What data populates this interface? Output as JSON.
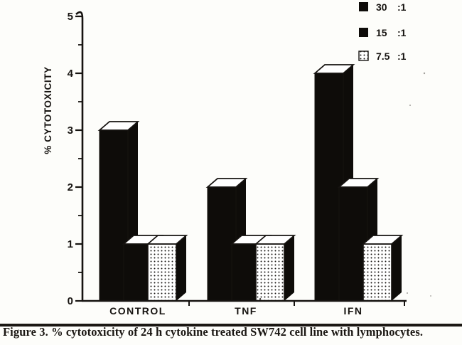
{
  "figure": {
    "caption": "Figure 3. % cytotoxicity of 24 h cytokine treated SW742 cell line with lymphocytes."
  },
  "chart_data": {
    "type": "bar",
    "variant": "3d-block-scan",
    "title": "",
    "xlabel": "",
    "ylabel": "% CYTOTOXICITY",
    "categories": [
      "CONTROL",
      "TNF",
      "IFN"
    ],
    "series": [
      {
        "name": "30 :1",
        "ratio": "30",
        "suffix": ":1",
        "fill": "solid",
        "values": [
          3,
          2,
          4
        ]
      },
      {
        "name": "15 :1",
        "ratio": "15",
        "suffix": ":1",
        "fill": "solid",
        "values": [
          1,
          1,
          2
        ]
      },
      {
        "name": "7.5 :1",
        "ratio": "7.5",
        "suffix": ":1",
        "fill": "stipple",
        "values": [
          1,
          1,
          1
        ]
      }
    ],
    "ylim": [
      0,
      5
    ],
    "ytick_values": [
      5,
      4,
      3,
      2,
      1,
      0
    ],
    "yminor_step": 0.5,
    "grid": false,
    "legend_position": "top-right",
    "colors": {
      "ink": "#161310",
      "bar": "#0e0c09",
      "top_face": "#ffffff",
      "background": "#fdfdfa"
    }
  }
}
